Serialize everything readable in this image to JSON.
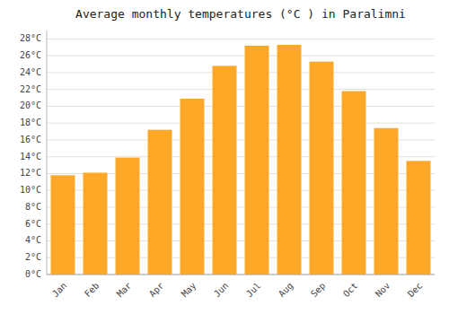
{
  "chart_data": {
    "type": "bar",
    "title": "Average monthly temperatures (°C ) in Paralimni",
    "categories": [
      "Jan",
      "Feb",
      "Mar",
      "Apr",
      "May",
      "Jun",
      "Jul",
      "Aug",
      "Sep",
      "Oct",
      "Nov",
      "Dec"
    ],
    "values": [
      11.8,
      12.1,
      13.9,
      17.2,
      20.9,
      24.8,
      27.2,
      27.3,
      25.3,
      21.8,
      17.4,
      13.5
    ],
    "color": "#FFA726",
    "ylim": [
      0,
      29
    ],
    "yticks": [
      {
        "value": 0,
        "label": "0°C"
      },
      {
        "value": 2,
        "label": "2°C"
      },
      {
        "value": 4,
        "label": "4°C"
      },
      {
        "value": 6,
        "label": "6°C"
      },
      {
        "value": 8,
        "label": "8°C"
      },
      {
        "value": 10,
        "label": "10°C"
      },
      {
        "value": 12,
        "label": "12°C"
      },
      {
        "value": 14,
        "label": "14°C"
      },
      {
        "value": 16,
        "label": "16°C"
      },
      {
        "value": 18,
        "label": "18°C"
      },
      {
        "value": 20,
        "label": "20°C"
      },
      {
        "value": 22,
        "label": "22°C"
      },
      {
        "value": 24,
        "label": "24°C"
      },
      {
        "value": 26,
        "label": "26°C"
      },
      {
        "value": 28,
        "label": "28°C"
      }
    ],
    "grid": true
  }
}
